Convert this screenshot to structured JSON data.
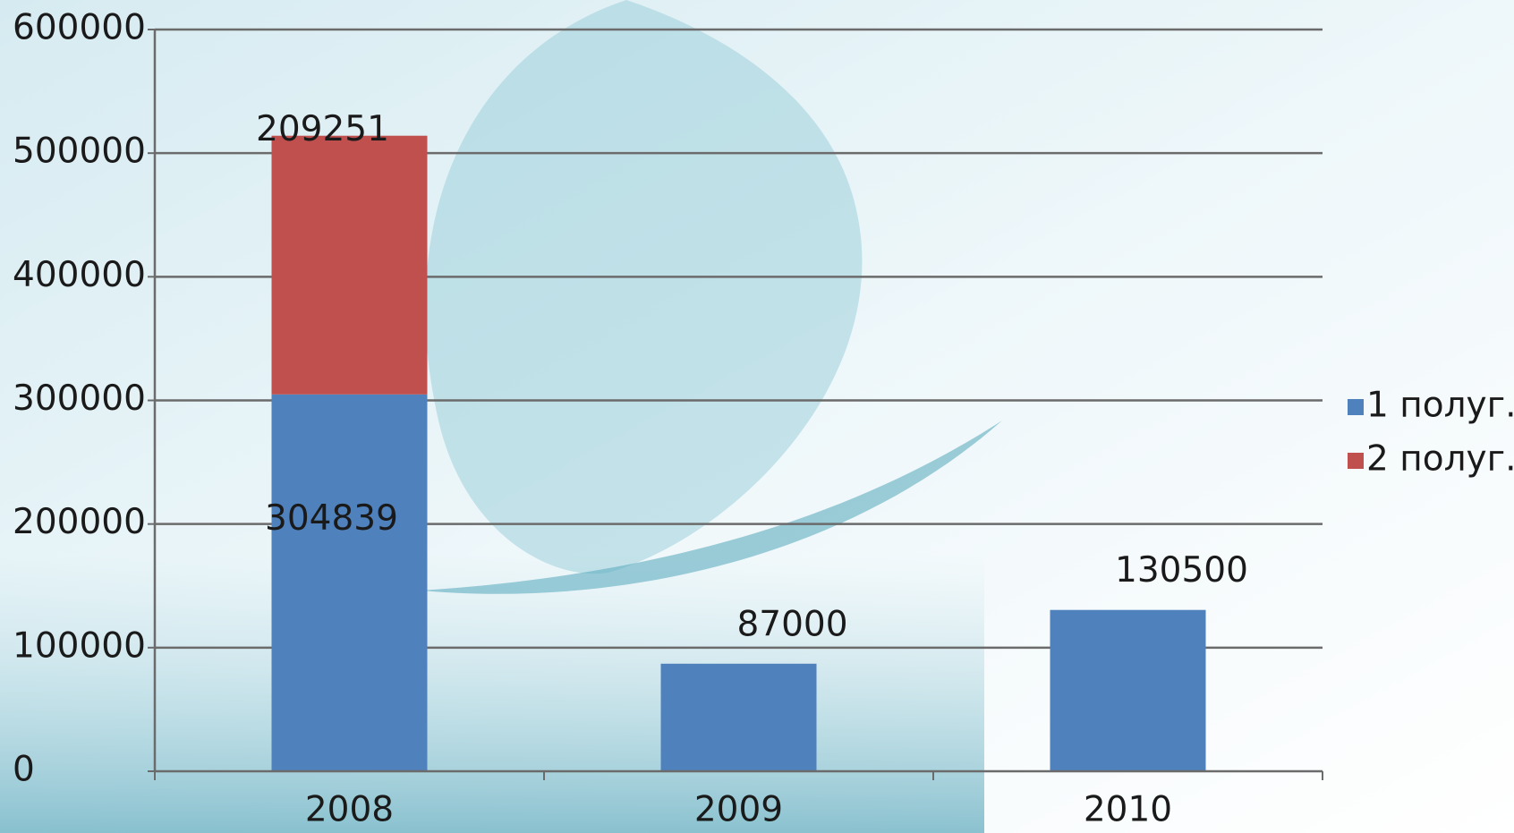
{
  "chart_data": {
    "type": "stacked-bar",
    "categories": [
      "2008",
      "2009",
      "2010"
    ],
    "series": [
      {
        "name": "1 полуг.",
        "color": "#4f81bd",
        "values": [
          304839,
          87000,
          130500
        ]
      },
      {
        "name": "2 полуг.",
        "color": "#c0504d",
        "values": [
          209251,
          null,
          null
        ]
      }
    ],
    "ylim": [
      0,
      600000
    ],
    "yticks": [
      0,
      100000,
      200000,
      300000,
      400000,
      500000,
      600000
    ],
    "grid": true,
    "legend": "right"
  }
}
